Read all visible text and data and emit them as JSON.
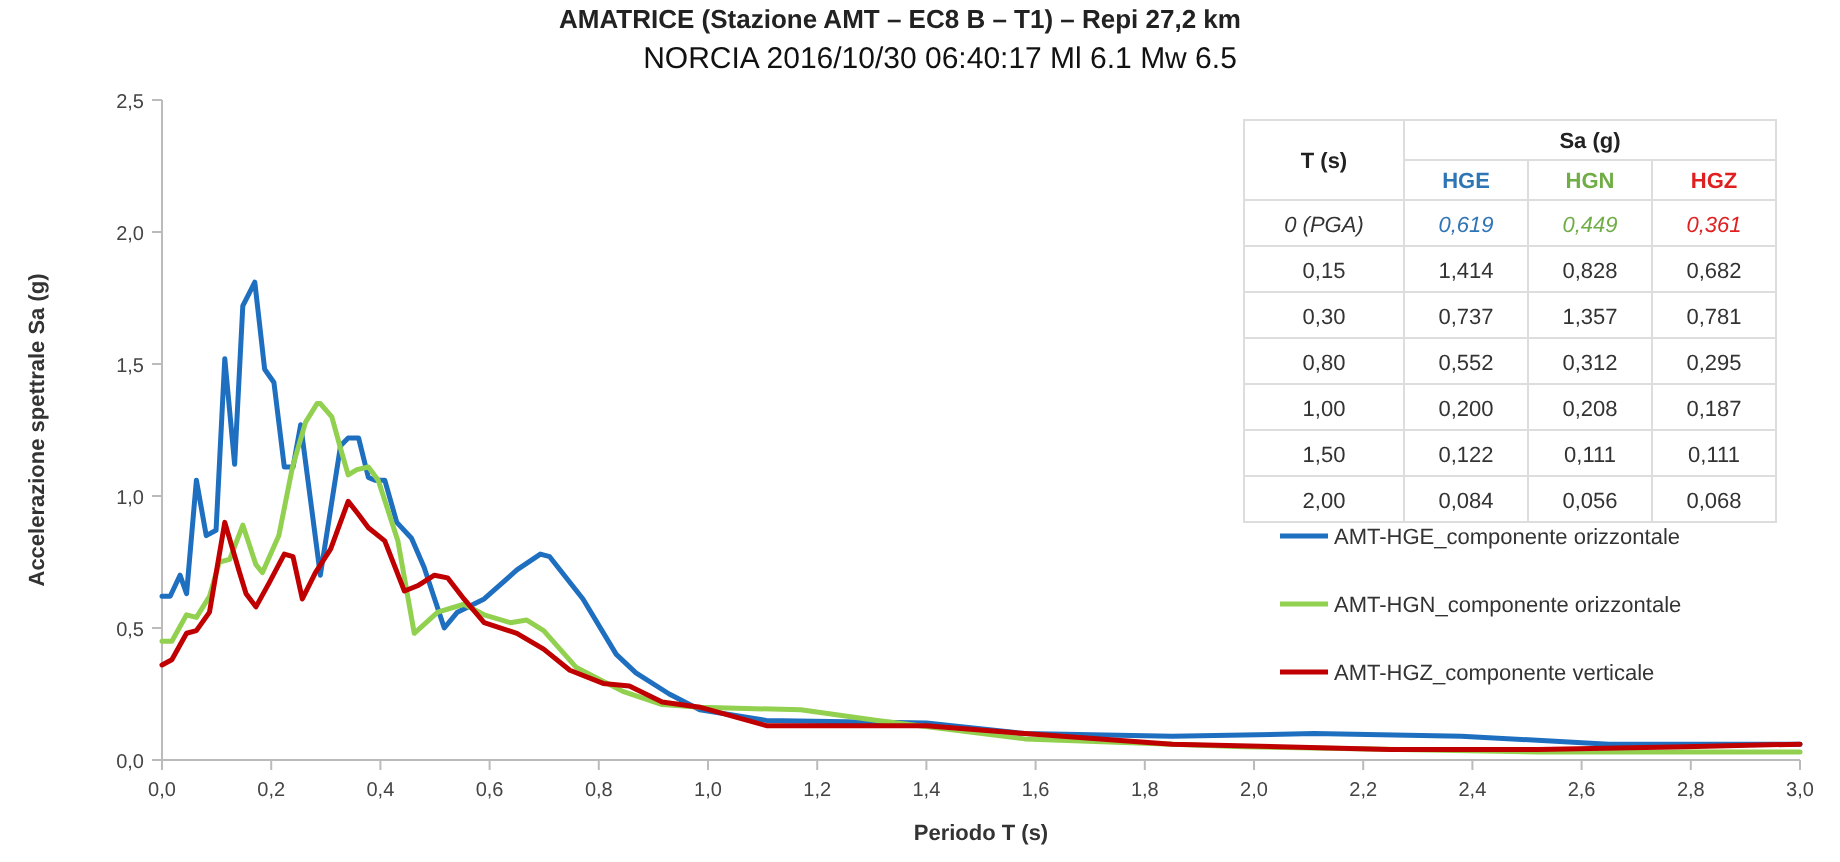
{
  "chart_data": [
    {
      "type": "line",
      "title": "AMATRICE (Stazione AMT – EC8 B – T1) – Repi 27,2 km",
      "subtitle": "NORCIA 2016/10/30 06:40:17 Ml 6.1 Mw 6.5",
      "xlabel": "Periodo T (s)",
      "ylabel": "Accelerazione spettrale Sa (g)",
      "xlim": [
        0,
        3
      ],
      "xticks": [
        {
          "value": 0,
          "label": "0,0"
        },
        {
          "value": 0.2,
          "label": "0,2"
        },
        {
          "value": 0.4,
          "label": "0,4"
        },
        {
          "value": 0.6,
          "label": "0,6"
        },
        {
          "value": 0.8,
          "label": "0,8"
        },
        {
          "value": 1,
          "label": "1,0"
        },
        {
          "value": 1.2,
          "label": "1,2"
        },
        {
          "value": 1.4,
          "label": "1,4"
        },
        {
          "value": 1.6,
          "label": "1,6"
        },
        {
          "value": 1.8,
          "label": "1,8"
        },
        {
          "value": 2,
          "label": "2,0"
        },
        {
          "value": 2.2,
          "label": "2,2"
        },
        {
          "value": 2.4,
          "label": "2,4"
        },
        {
          "value": 2.6,
          "label": "2,6"
        },
        {
          "value": 2.8,
          "label": "2,8"
        },
        {
          "value": 3,
          "label": "3,0"
        }
      ],
      "ylim": [
        0,
        2.5
      ],
      "yticks": [
        {
          "value": 0,
          "label": "0,0"
        },
        {
          "value": 0.5,
          "label": "0,5"
        },
        {
          "value": 1,
          "label": "1,0"
        },
        {
          "value": 1.5,
          "label": "1,5"
        },
        {
          "value": 2,
          "label": "2,0"
        },
        {
          "value": 2.5,
          "label": "2,5"
        }
      ],
      "grid": false,
      "legend": "right",
      "marker": "none",
      "line_style": "solid",
      "series": [
        {
          "name": "AMT-HGE_componente orizzontale",
          "color": "#1f6fc0",
          "x": [
            0,
            0.015,
            0.033,
            0.045,
            0.063,
            0.081,
            0.099,
            0.115,
            0.133,
            0.148,
            0.17,
            0.188,
            0.205,
            0.224,
            0.24,
            0.254,
            0.29,
            0.327,
            0.341,
            0.36,
            0.378,
            0.39,
            0.408,
            0.43,
            0.457,
            0.48,
            0.517,
            0.541,
            0.59,
            0.65,
            0.693,
            0.71,
            0.771,
            0.832,
            0.868,
            0.929,
            0.985,
            1.107,
            1.4,
            1.58,
            1.85,
            2.11,
            2.38,
            2.65,
            3
          ],
          "values": [
            0.62,
            0.62,
            0.7,
            0.63,
            1.06,
            0.85,
            0.87,
            1.52,
            1.12,
            1.72,
            1.81,
            1.48,
            1.43,
            1.11,
            1.11,
            1.27,
            0.7,
            1.19,
            1.22,
            1.22,
            1.07,
            1.06,
            1.06,
            0.9,
            0.84,
            0.73,
            0.5,
            0.56,
            0.61,
            0.72,
            0.78,
            0.77,
            0.61,
            0.4,
            0.33,
            0.25,
            0.19,
            0.15,
            0.14,
            0.1,
            0.09,
            0.1,
            0.09,
            0.06,
            0.06
          ]
        },
        {
          "name": "AMT-HGN_componente orizzontale",
          "color": "#92d050",
          "x": [
            0,
            0.018,
            0.045,
            0.063,
            0.087,
            0.105,
            0.124,
            0.148,
            0.172,
            0.184,
            0.214,
            0.239,
            0.263,
            0.284,
            0.29,
            0.311,
            0.327,
            0.341,
            0.357,
            0.378,
            0.396,
            0.432,
            0.462,
            0.505,
            0.553,
            0.59,
            0.638,
            0.668,
            0.699,
            0.759,
            0.844,
            0.916,
            0.985,
            1.17,
            1.31,
            1.58,
            1.98,
            2.52,
            3
          ],
          "values": [
            0.45,
            0.45,
            0.55,
            0.54,
            0.62,
            0.75,
            0.76,
            0.89,
            0.74,
            0.71,
            0.85,
            1.11,
            1.28,
            1.35,
            1.35,
            1.3,
            1.18,
            1.08,
            1.1,
            1.11,
            1.06,
            0.83,
            0.48,
            0.56,
            0.59,
            0.55,
            0.52,
            0.53,
            0.49,
            0.35,
            0.26,
            0.21,
            0.2,
            0.19,
            0.15,
            0.08,
            0.05,
            0.03,
            0.03
          ]
        },
        {
          "name": "AMT-HGZ_componente verticale",
          "color": "#c00000",
          "x": [
            0,
            0.018,
            0.045,
            0.063,
            0.087,
            0.115,
            0.142,
            0.154,
            0.172,
            0.196,
            0.224,
            0.24,
            0.257,
            0.281,
            0.309,
            0.341,
            0.36,
            0.378,
            0.408,
            0.444,
            0.468,
            0.499,
            0.523,
            0.553,
            0.59,
            0.65,
            0.699,
            0.747,
            0.808,
            0.856,
            0.916,
            0.985,
            1.107,
            1.31,
            1.4,
            1.58,
            1.85,
            2.25,
            2.52,
            2.79,
            3
          ],
          "values": [
            0.36,
            0.38,
            0.48,
            0.49,
            0.56,
            0.9,
            0.71,
            0.63,
            0.58,
            0.67,
            0.78,
            0.77,
            0.61,
            0.71,
            0.8,
            0.98,
            0.93,
            0.88,
            0.83,
            0.64,
            0.66,
            0.7,
            0.69,
            0.61,
            0.52,
            0.48,
            0.42,
            0.34,
            0.29,
            0.28,
            0.22,
            0.2,
            0.13,
            0.13,
            0.13,
            0.1,
            0.06,
            0.04,
            0.04,
            0.05,
            0.06
          ]
        }
      ]
    },
    {
      "type": "other",
      "xlabel": "Sa (g)",
      "ylabel": "T (s)",
      "categories": [
        "HGE",
        "HGN",
        "HGZ"
      ],
      "colors": [
        "#2e75b6",
        "#70ad47",
        "#e02020"
      ],
      "y_categories": [
        "0 (PGA)",
        "0,15",
        "0,30",
        "0,80",
        "1,00",
        "1,50",
        "2,00"
      ],
      "cell_labels": [
        [
          "0,619",
          "0,449",
          "0,361"
        ],
        [
          "1,414",
          "0,828",
          "0,682"
        ],
        [
          "0,737",
          "1,357",
          "0,781"
        ],
        [
          "0,552",
          "0,312",
          "0,295"
        ],
        [
          "0,200",
          "0,208",
          "0,187"
        ],
        [
          "0,122",
          "0,111",
          "0,111"
        ],
        [
          "0,084",
          "0,056",
          "0,068"
        ]
      ]
    }
  ]
}
